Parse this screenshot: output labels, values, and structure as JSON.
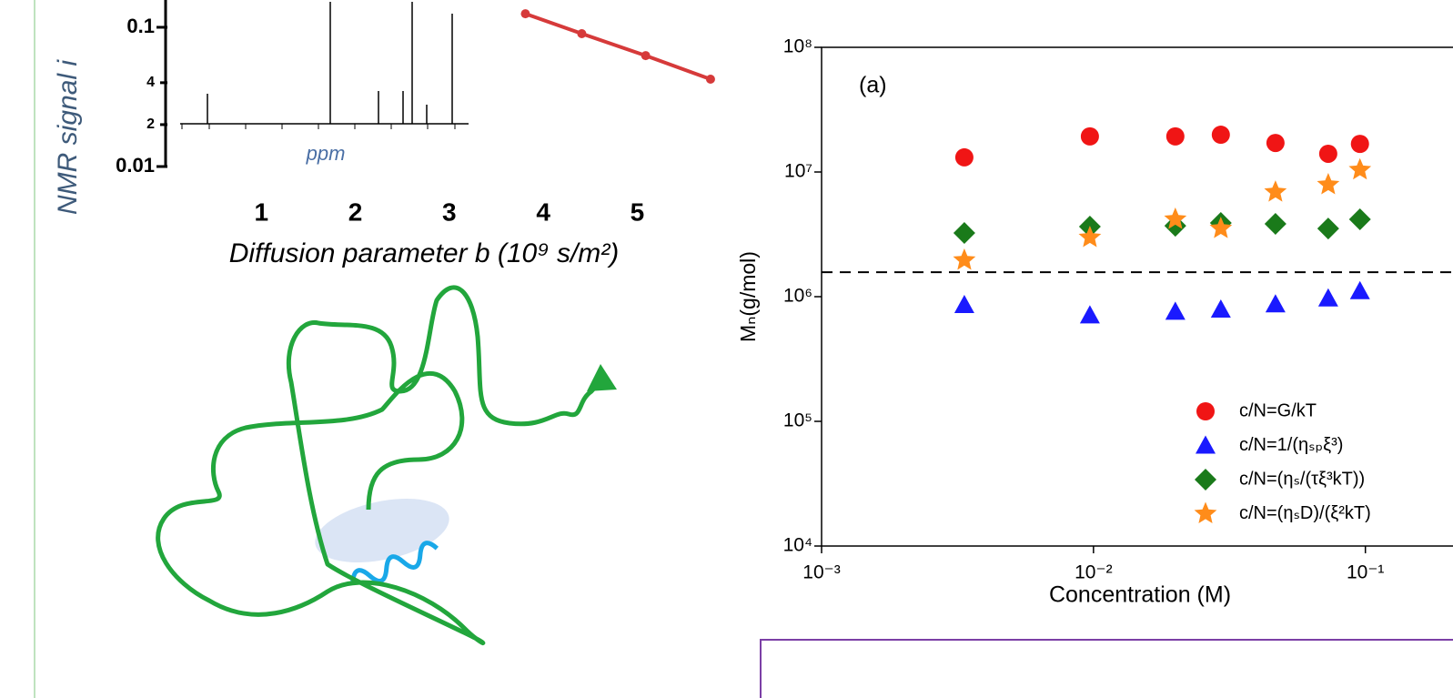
{
  "chart_data": [
    {
      "type": "line",
      "x_label": "Diffusion parameter b (10⁹ s/m²)",
      "y_label": "NMR signal i",
      "inset_label": "ppm",
      "log_y": true,
      "xlim": [
        0,
        5.8
      ],
      "xticks": [
        1,
        2,
        3,
        4,
        5
      ],
      "ylim": [
        0.01,
        0.157
      ],
      "yticks": [
        0.01,
        {
          "value": 0.02,
          "label": "2"
        },
        {
          "value": 0.04,
          "label": "4"
        },
        0.1
      ],
      "series": [
        {
          "color": "#d63a3a",
          "x": [
            3.81,
            4.41,
            5.09,
            5.78
          ],
          "values": [
            0.125,
            0.09,
            0.0626,
            0.0424
          ]
        }
      ]
    },
    {
      "type": "scatter",
      "annotation": "(a)",
      "x_label": "Concentration (M)",
      "y_label": "Mₙ(g/mol)",
      "log_x": true,
      "log_y": true,
      "xlim": [
        0.001,
        0.21
      ],
      "xticks": [
        {
          "value": 0.001,
          "label": "10⁻³"
        },
        {
          "value": 0.01,
          "label": "10⁻²"
        },
        {
          "value": 0.1,
          "label": "10⁻¹"
        }
      ],
      "ylim": [
        10000,
        100000000
      ],
      "yticks": [
        {
          "value": 10000,
          "label": "10⁴"
        },
        {
          "value": 100000,
          "label": "10⁵"
        },
        {
          "value": 1000000,
          "label": "10⁶"
        },
        {
          "value": 10000000,
          "label": "10⁷"
        },
        {
          "value": 100000000,
          "label": "10⁸"
        }
      ],
      "reference_line": 1570000,
      "x": [
        0.00335,
        0.0097,
        0.02,
        0.0294,
        0.0467,
        0.073,
        0.0955
      ],
      "series": [
        {
          "name": "c/N=G/kT",
          "color": "#f01515",
          "marker": "circle",
          "values": [
            13100000,
            19300000,
            19300000,
            19900000,
            17100000,
            14000000,
            16800000
          ]
        },
        {
          "name": "c/N=1/(ηₛₚξ³)",
          "color": "#1a1aff",
          "marker": "triangle",
          "values": [
            860000,
            710000,
            760000,
            790000,
            870000,
            970000,
            1110000
          ]
        },
        {
          "name": "c/N=(ηₛ/(τξ³kT))",
          "color": "#1a7a1a",
          "marker": "diamond",
          "values": [
            3240000,
            3650000,
            3700000,
            3900000,
            3840000,
            3520000,
            4170000
          ]
        },
        {
          "name": "c/N=(ηₛD)/(ξ²kT)",
          "color": "#ff8c1a",
          "marker": "star",
          "values": [
            1960000,
            2980000,
            4170000,
            3520000,
            6900000,
            7900000,
            10400000
          ]
        }
      ]
    }
  ]
}
